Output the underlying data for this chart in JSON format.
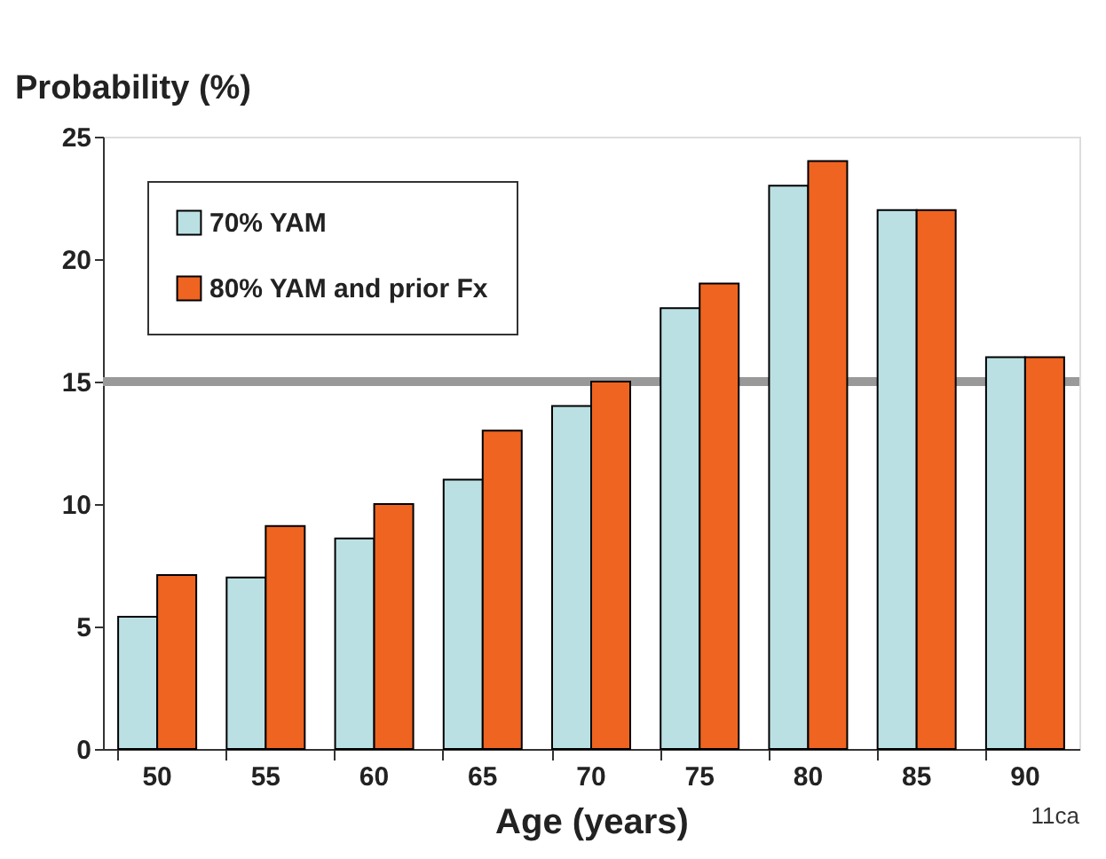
{
  "chart_data": {
    "type": "bar",
    "ylabel": "Probability (%)",
    "xlabel": "Age (years)",
    "categories": [
      "50",
      "55",
      "60",
      "65",
      "70",
      "75",
      "80",
      "85",
      "90"
    ],
    "series": [
      {
        "name": "70% YAM",
        "color": "#bbe0e3",
        "values": [
          5.4,
          7.0,
          8.6,
          11.0,
          14.0,
          18.0,
          23.0,
          22.0,
          16.0
        ]
      },
      {
        "name": "80% YAM and prior Fx",
        "color": "#ee6420",
        "values": [
          7.1,
          9.1,
          10.0,
          13.0,
          15.0,
          19.0,
          24.0,
          22.0,
          16.0
        ]
      }
    ],
    "ylim": [
      0,
      25
    ],
    "yticks": [
      0,
      5,
      10,
      15,
      20,
      25
    ],
    "ref_lines": [
      {
        "axis": "y",
        "value": 15,
        "color": "#999999"
      }
    ],
    "annotations": [
      "11ca"
    ],
    "legend": "top left",
    "grid": false
  }
}
